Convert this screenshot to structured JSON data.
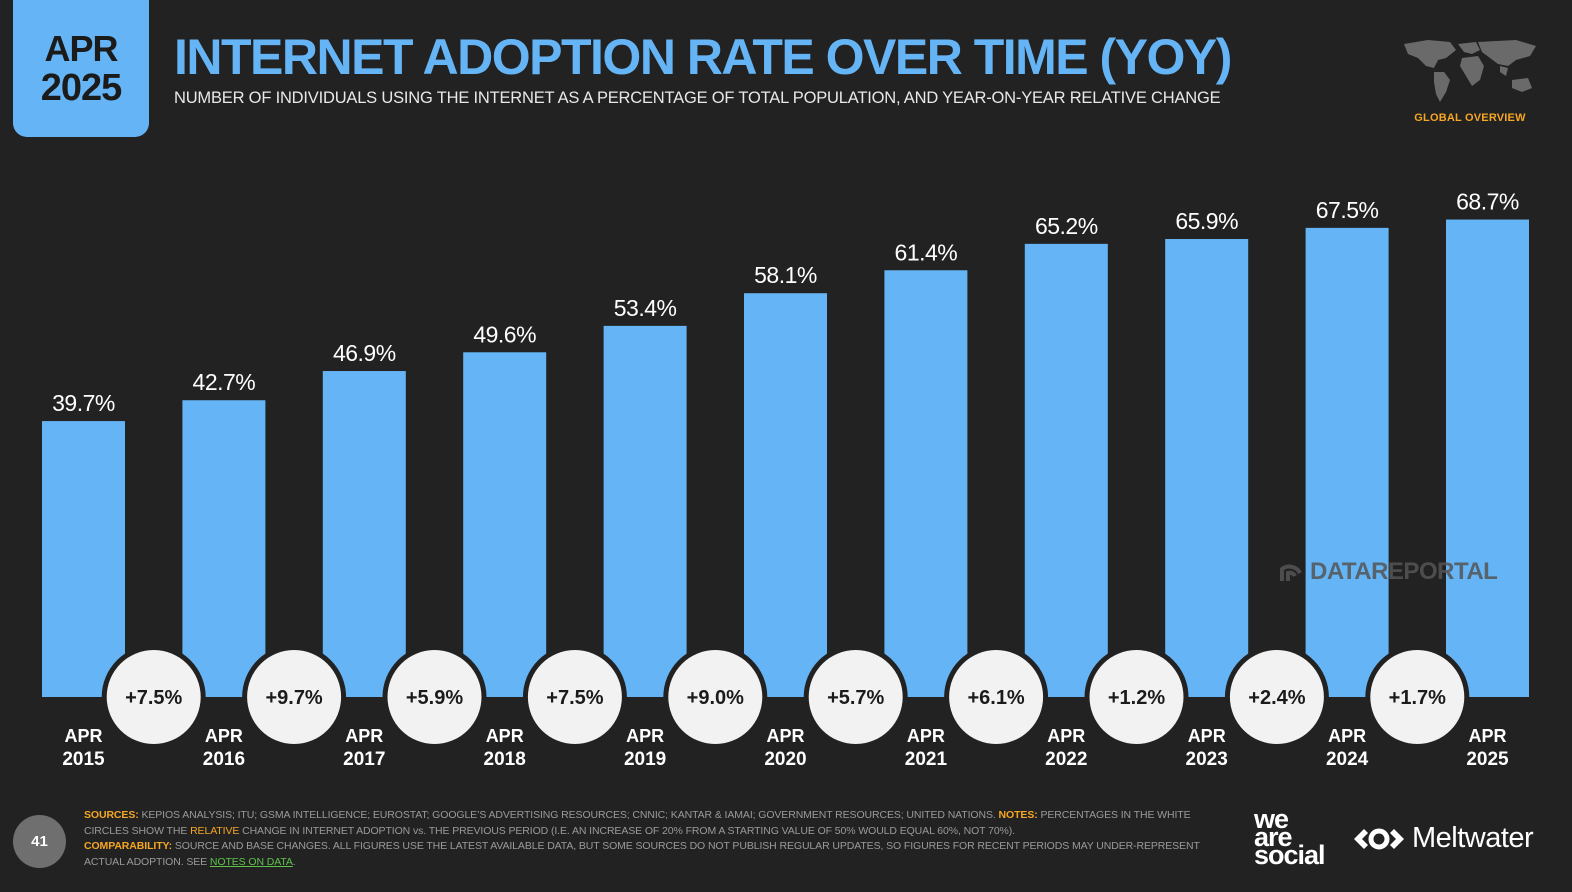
{
  "badge": {
    "month": "APR",
    "year": "2025"
  },
  "header": {
    "title": "INTERNET ADOPTION RATE OVER TIME (YOY)",
    "subtitle": "NUMBER OF INDIVIDUALS USING THE INTERNET AS A PERCENTAGE OF TOTAL POPULATION, AND YEAR-ON-YEAR RELATIVE CHANGE",
    "section": "GLOBAL OVERVIEW"
  },
  "colors": {
    "bar": "#65b5f6",
    "background": "#222222",
    "accent": "#f5a623",
    "circle": "#f2f2f2"
  },
  "chart_data": {
    "type": "bar",
    "categories": [
      "APR|2015",
      "APR|2016",
      "APR|2017",
      "APR|2018",
      "APR|2019",
      "APR|2020",
      "APR|2021",
      "APR|2022",
      "APR|2023",
      "APR|2024",
      "APR|2025"
    ],
    "values": [
      39.7,
      42.7,
      46.9,
      49.6,
      53.4,
      58.1,
      61.4,
      65.2,
      65.9,
      67.5,
      68.7
    ],
    "value_labels": [
      "39.7%",
      "42.7%",
      "46.9%",
      "49.6%",
      "53.4%",
      "58.1%",
      "61.4%",
      "65.2%",
      "65.9%",
      "67.5%",
      "68.7%"
    ],
    "yoy_changes": [
      "+7.5%",
      "+9.7%",
      "+5.9%",
      "+7.5%",
      "+9.0%",
      "+5.7%",
      "+6.1%",
      "+1.2%",
      "+2.4%",
      "+1.7%"
    ],
    "ylim": [
      0,
      100
    ],
    "grid": false,
    "legend": "none"
  },
  "watermark": "DATAREPORTAL",
  "footer": {
    "page": "41",
    "sources_label": "SOURCES:",
    "sources_text": "KEPIOS ANALYSIS; ITU; GSMA INTELLIGENCE; EUROSTAT; GOOGLE’S ADVERTISING RESOURCES; CNNIC; KANTAR & IAMAI; GOVERNMENT RESOURCES; UNITED NATIONS.",
    "notes_label": "NOTES:",
    "notes_text_1": "PERCENTAGES IN THE WHITE CIRCLES SHOW THE",
    "notes_relative": "RELATIVE",
    "notes_text_2": "CHANGE IN INTERNET ADOPTION vs. THE PREVIOUS PERIOD (I.E. AN INCREASE OF 20% FROM A STARTING VALUE OF 50% WOULD EQUAL 60%, NOT 70%).",
    "comparability_label": "COMPARABILITY:",
    "comparability_text": "SOURCE AND BASE CHANGES. ALL FIGURES USE THE LATEST AVAILABLE DATA, BUT SOME SOURCES DO NOT PUBLISH REGULAR UPDATES, SO FIGURES FOR RECENT PERIODS MAY UNDER-REPRESENT ACTUAL ADOPTION. SEE",
    "notes_link": "NOTES ON DATA",
    "period": ".",
    "brand1_line1": "we",
    "brand1_line2": "are",
    "brand1_line3": "social",
    "brand2": "Meltwater"
  }
}
